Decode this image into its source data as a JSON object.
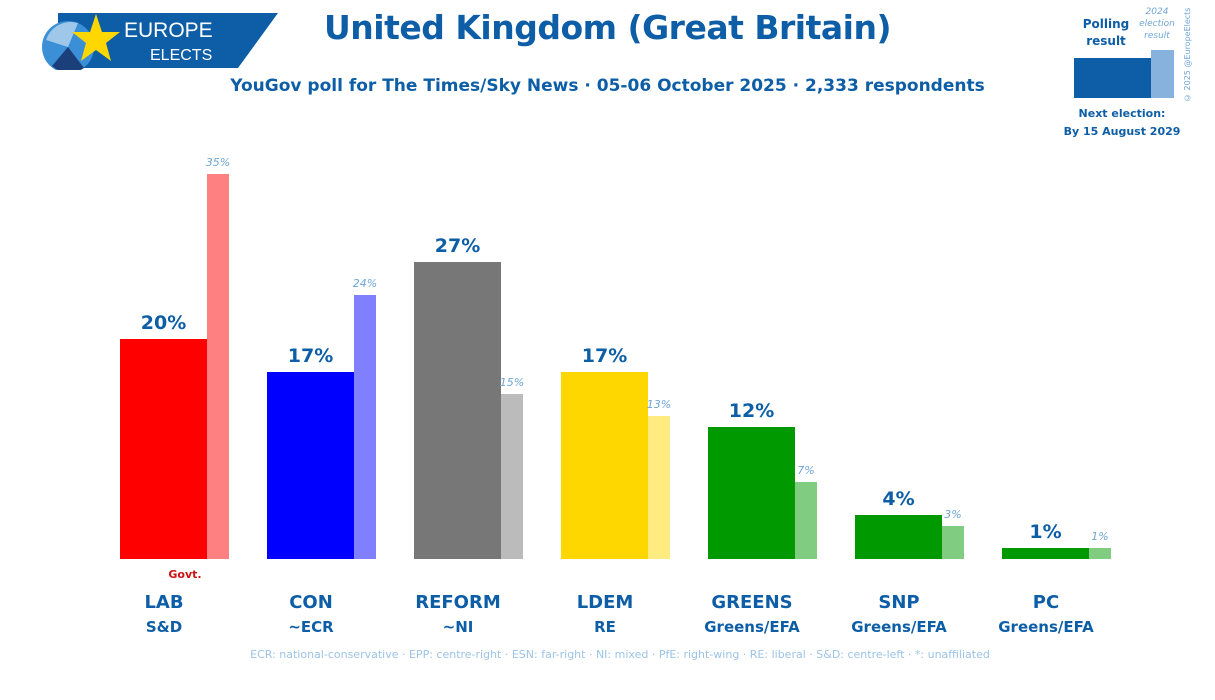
{
  "logo": {
    "line1": "EUROPE",
    "line2": "ELECTS"
  },
  "title": "United Kingdom (Great Britain)",
  "subtitle": "YouGov poll for The Times/Sky News · 05-06 October 2025 · 2,333 respondents",
  "legend": {
    "polling_label_1": "Polling",
    "polling_label_2": "result",
    "election_label_1": "2024",
    "election_label_2": "election",
    "election_label_3": "result",
    "next_election_1": "Next election:",
    "next_election_2": "By 15 August 2029"
  },
  "copyright": "© 2025 @EuropeElects",
  "footnote": "ECR: national-conservative · EPP: centre-right · ESN: far-right · NI: mixed · PfE: right-wing · RE: liberal · S&D: centre-left · *: unaffiliated",
  "colors": {
    "brand": "#0d5ea6",
    "election_label": "#6fa6d6",
    "govt_label": "#cc1111"
  },
  "chart_data": {
    "type": "bar",
    "categories": [
      "LAB",
      "CON",
      "REFORM",
      "LDEM",
      "GREENS",
      "SNP",
      "PC"
    ],
    "groups": [
      "S&D",
      "~ECR",
      "~NI",
      "RE",
      "Greens/EFA",
      "Greens/EFA",
      "Greens/EFA"
    ],
    "series": [
      {
        "values": [
          20,
          17,
          27,
          17,
          12,
          4,
          1
        ],
        "labels": [
          "20%",
          "17%",
          "27%",
          "17%",
          "12%",
          "4%",
          "1%"
        ]
      },
      {
        "values": [
          35,
          24,
          15,
          13,
          7,
          3,
          1
        ],
        "labels": [
          "35%",
          "24%",
          "15%",
          "13%",
          "7%",
          "3%",
          "1%"
        ]
      }
    ],
    "colors_poll": [
      "#ff0000",
      "#0000ff",
      "#777777",
      "#ffd700",
      "#009900",
      "#009900",
      "#009900"
    ],
    "colors_election": [
      "#ff8080",
      "#8080ff",
      "#bbbbbb",
      "#ffeb80",
      "#80cc80",
      "#80cc80",
      "#80cc80"
    ],
    "annotation": {
      "category": "LAB",
      "text": "Govt."
    },
    "ylim": [
      0,
      35
    ],
    "grid": false
  }
}
